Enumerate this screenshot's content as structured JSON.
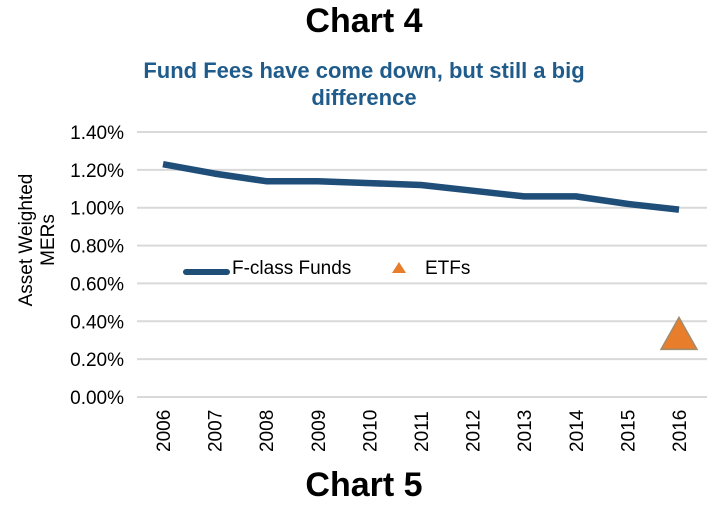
{
  "page": {
    "title": "Chart 4",
    "footer_title": "Chart 5"
  },
  "chart_data": {
    "type": "line",
    "subtitle": "Fund Fees have come down, but still a big difference",
    "ylabel": "Asset Weighted MERs",
    "units": "percent MER",
    "categories": [
      "2006",
      "2007",
      "2008",
      "2009",
      "2010",
      "2011",
      "2012",
      "2013",
      "2014",
      "2015",
      "2016"
    ],
    "yticks": [
      "1.40%",
      "1.20%",
      "1.00%",
      "0.80%",
      "0.60%",
      "0.40%",
      "0.20%",
      "0.00%"
    ],
    "ylim": [
      0,
      1.4
    ],
    "grid": true,
    "legend_position": "inside-plot-middle-left",
    "series": [
      {
        "name": "F-class Funds",
        "type": "line",
        "values": [
          1.23,
          1.18,
          1.14,
          1.14,
          1.13,
          1.12,
          1.09,
          1.06,
          1.06,
          1.02,
          0.99
        ]
      },
      {
        "name": "ETFs",
        "type": "scatter",
        "marker": "triangle",
        "points": [
          {
            "category": "2016",
            "value": 0.32
          }
        ]
      }
    ],
    "colors": {
      "line": "#1F4E79",
      "marker_fill": "#E87D2C",
      "marker_border": "#A08C6E",
      "grid": "#D9D9D9",
      "subtitle": "#1F5C8B",
      "axis_text": "#000000",
      "title_text": "#000000"
    }
  }
}
